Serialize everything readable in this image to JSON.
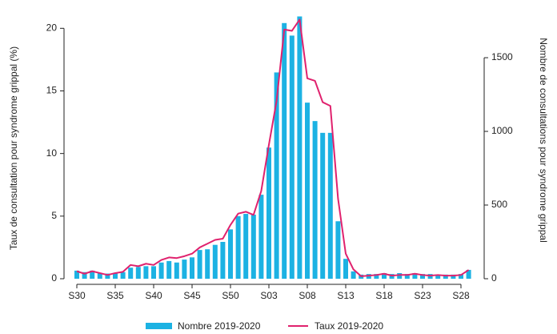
{
  "chart_data": {
    "type": "bar_line",
    "y_label": "Taux de consultation pour syndrome grippal (%)",
    "y2_label": "Nombre de consultations pour syndrome grippal",
    "categories": [
      "S30",
      null,
      null,
      null,
      null,
      "S35",
      null,
      null,
      null,
      null,
      "S40",
      null,
      null,
      null,
      null,
      "S45",
      null,
      null,
      null,
      null,
      "S50",
      null,
      null,
      null,
      null,
      "S03",
      null,
      null,
      null,
      null,
      "S08",
      null,
      null,
      null,
      null,
      "S13",
      null,
      null,
      null,
      null,
      "S18",
      null,
      null,
      null,
      null,
      "S23",
      null,
      null,
      null,
      null,
      "S28",
      null
    ],
    "ylim": [
      0,
      21.3
    ],
    "yticks": [
      0,
      5,
      10,
      15,
      20
    ],
    "y2lim": [
      0,
      1810
    ],
    "y2ticks": [
      0,
      500,
      1000,
      1500
    ],
    "series": [
      {
        "name": "Nombre 2019-2020",
        "type": "bar",
        "axis": "y2",
        "color": "#1cb2e3",
        "values": [
          55,
          45,
          55,
          40,
          35,
          40,
          45,
          75,
          80,
          85,
          85,
          110,
          120,
          110,
          130,
          145,
          195,
          200,
          230,
          250,
          335,
          425,
          440,
          435,
          570,
          890,
          1400,
          1735,
          1650,
          1780,
          1195,
          1070,
          990,
          990,
          390,
          135,
          50,
          28,
          32,
          32,
          38,
          32,
          38,
          32,
          38,
          32,
          32,
          28,
          28,
          28,
          32,
          60
        ]
      },
      {
        "name": "Taux 2019-2020",
        "type": "line",
        "color": "#e0226e",
        "values": [
          0.6,
          0.4,
          0.6,
          0.45,
          0.3,
          0.45,
          0.55,
          1.1,
          1.0,
          1.2,
          1.1,
          1.5,
          1.7,
          1.65,
          1.8,
          2.0,
          2.5,
          2.8,
          3.1,
          3.2,
          4.3,
          5.2,
          5.35,
          5.1,
          7.0,
          10.7,
          14.2,
          19.9,
          19.8,
          20.7,
          16.0,
          15.8,
          14.1,
          13.8,
          6.4,
          2.0,
          0.75,
          0.2,
          0.25,
          0.3,
          0.4,
          0.25,
          0.3,
          0.3,
          0.4,
          0.3,
          0.25,
          0.3,
          0.25,
          0.25,
          0.3,
          0.7
        ]
      }
    ]
  }
}
